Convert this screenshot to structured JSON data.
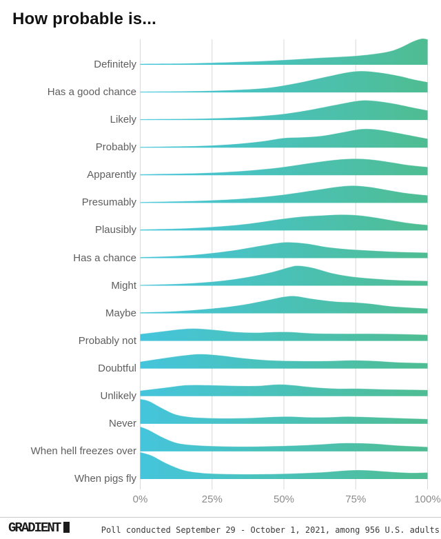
{
  "header": {
    "title": "How probable is..."
  },
  "chart_data": {
    "type": "area",
    "variant": "ridgeline",
    "title": "How probable is...",
    "xlabel": "",
    "ylabel": "",
    "x_range": [
      0,
      100
    ],
    "x_ticks": [
      "0%",
      "25%",
      "50%",
      "75%",
      "100%"
    ],
    "grid": "vertical",
    "legend": "none",
    "colors": {
      "gradient_left": "#45C5DC",
      "gradient_right": "#4FBD92",
      "gridline": "#d8d8d8",
      "category_label": "#5e5e5e",
      "tick_label": "#8a8a8a"
    },
    "series": [
      {
        "name": "Definitely",
        "points": [
          [
            0,
            1.5
          ],
          [
            15,
            2
          ],
          [
            25,
            3
          ],
          [
            40,
            5
          ],
          [
            50,
            7
          ],
          [
            62,
            10
          ],
          [
            75,
            13
          ],
          [
            85,
            18
          ],
          [
            90,
            24
          ],
          [
            95,
            34
          ],
          [
            98,
            38
          ],
          [
            100,
            37
          ]
        ]
      },
      {
        "name": "Has a good chance",
        "points": [
          [
            0,
            1.2
          ],
          [
            20,
            2
          ],
          [
            35,
            4
          ],
          [
            45,
            7
          ],
          [
            55,
            14
          ],
          [
            65,
            23
          ],
          [
            72,
            29
          ],
          [
            77,
            31
          ],
          [
            83,
            29
          ],
          [
            90,
            24
          ],
          [
            95,
            19
          ],
          [
            100,
            15
          ]
        ]
      },
      {
        "name": "Likely",
        "points": [
          [
            0,
            1.2
          ],
          [
            20,
            2
          ],
          [
            35,
            4
          ],
          [
            48,
            8
          ],
          [
            58,
            14
          ],
          [
            68,
            22
          ],
          [
            76,
            28
          ],
          [
            81,
            28
          ],
          [
            88,
            24
          ],
          [
            95,
            18
          ],
          [
            100,
            14
          ]
        ]
      },
      {
        "name": "Probably",
        "points": [
          [
            0,
            1.2
          ],
          [
            20,
            2.5
          ],
          [
            32,
            5
          ],
          [
            42,
            9
          ],
          [
            50,
            14
          ],
          [
            56,
            15
          ],
          [
            63,
            17
          ],
          [
            70,
            22
          ],
          [
            77,
            27
          ],
          [
            83,
            26
          ],
          [
            90,
            21
          ],
          [
            95,
            17
          ],
          [
            100,
            13
          ]
        ]
      },
      {
        "name": "Apparently",
        "points": [
          [
            0,
            1.5
          ],
          [
            20,
            3
          ],
          [
            35,
            6
          ],
          [
            48,
            11
          ],
          [
            58,
            17
          ],
          [
            67,
            22
          ],
          [
            74,
            24
          ],
          [
            80,
            23
          ],
          [
            87,
            19
          ],
          [
            93,
            15
          ],
          [
            100,
            12
          ]
        ]
      },
      {
        "name": "Presumably",
        "points": [
          [
            0,
            1.2
          ],
          [
            20,
            3
          ],
          [
            35,
            6
          ],
          [
            48,
            11
          ],
          [
            60,
            18
          ],
          [
            68,
            23
          ],
          [
            74,
            25
          ],
          [
            80,
            23
          ],
          [
            87,
            18
          ],
          [
            93,
            14
          ],
          [
            100,
            11
          ]
        ]
      },
      {
        "name": "Plausibly",
        "points": [
          [
            0,
            1.5
          ],
          [
            15,
            3
          ],
          [
            28,
            6
          ],
          [
            38,
            10
          ],
          [
            48,
            16
          ],
          [
            56,
            20
          ],
          [
            64,
            22
          ],
          [
            70,
            23
          ],
          [
            76,
            22
          ],
          [
            83,
            18
          ],
          [
            90,
            13
          ],
          [
            95,
            10
          ],
          [
            100,
            8
          ]
        ]
      },
      {
        "name": "Has a chance",
        "points": [
          [
            0,
            1.5
          ],
          [
            12,
            3
          ],
          [
            22,
            6
          ],
          [
            32,
            11
          ],
          [
            42,
            18
          ],
          [
            48,
            22
          ],
          [
            52,
            23
          ],
          [
            58,
            21
          ],
          [
            65,
            16
          ],
          [
            72,
            13
          ],
          [
            80,
            11
          ],
          [
            90,
            9
          ],
          [
            100,
            8
          ]
        ]
      },
      {
        "name": "Might",
        "points": [
          [
            0,
            1.2
          ],
          [
            15,
            3
          ],
          [
            28,
            7
          ],
          [
            38,
            13
          ],
          [
            46,
            20
          ],
          [
            52,
            27
          ],
          [
            55,
            29
          ],
          [
            60,
            26
          ],
          [
            67,
            18
          ],
          [
            74,
            13
          ],
          [
            82,
            10
          ],
          [
            90,
            8
          ],
          [
            100,
            7
          ]
        ]
      },
      {
        "name": "Maybe",
        "points": [
          [
            0,
            1.5
          ],
          [
            12,
            3
          ],
          [
            25,
            7
          ],
          [
            35,
            12
          ],
          [
            44,
            19
          ],
          [
            50,
            24
          ],
          [
            54,
            25
          ],
          [
            60,
            21
          ],
          [
            68,
            17
          ],
          [
            74,
            16
          ],
          [
            80,
            14
          ],
          [
            88,
            10
          ],
          [
            100,
            7
          ]
        ]
      },
      {
        "name": "Probably not",
        "points": [
          [
            0,
            10
          ],
          [
            8,
            14
          ],
          [
            14,
            17
          ],
          [
            19,
            18
          ],
          [
            26,
            16
          ],
          [
            33,
            13
          ],
          [
            40,
            12
          ],
          [
            47,
            13
          ],
          [
            52,
            13
          ],
          [
            60,
            11
          ],
          [
            70,
            10.5
          ],
          [
            80,
            10.5
          ],
          [
            90,
            10
          ],
          [
            100,
            9
          ]
        ]
      },
      {
        "name": "Doubtful",
        "points": [
          [
            0,
            10
          ],
          [
            8,
            15
          ],
          [
            15,
            19
          ],
          [
            21,
            21
          ],
          [
            28,
            19
          ],
          [
            36,
            15
          ],
          [
            45,
            12
          ],
          [
            55,
            11
          ],
          [
            65,
            11
          ],
          [
            74,
            12
          ],
          [
            82,
            11
          ],
          [
            90,
            9
          ],
          [
            100,
            8
          ]
        ]
      },
      {
        "name": "Unlikely",
        "points": [
          [
            0,
            8
          ],
          [
            8,
            12
          ],
          [
            16,
            16
          ],
          [
            24,
            16
          ],
          [
            33,
            15
          ],
          [
            41,
            15
          ],
          [
            48,
            17
          ],
          [
            53,
            16
          ],
          [
            60,
            13
          ],
          [
            68,
            11
          ],
          [
            76,
            11
          ],
          [
            84,
            10
          ],
          [
            92,
            9.5
          ],
          [
            100,
            9
          ]
        ]
      },
      {
        "name": "Never",
        "points": [
          [
            0,
            36
          ],
          [
            3,
            33
          ],
          [
            7,
            24
          ],
          [
            12,
            14
          ],
          [
            17,
            10
          ],
          [
            23,
            8.5
          ],
          [
            30,
            8
          ],
          [
            38,
            8.5
          ],
          [
            46,
            10
          ],
          [
            52,
            10.5
          ],
          [
            58,
            9.5
          ],
          [
            65,
            9.5
          ],
          [
            72,
            10.5
          ],
          [
            78,
            10
          ],
          [
            85,
            9
          ],
          [
            92,
            8
          ],
          [
            100,
            7
          ]
        ]
      },
      {
        "name": "When hell freezes over",
        "points": [
          [
            0,
            36
          ],
          [
            3,
            31
          ],
          [
            8,
            20
          ],
          [
            13,
            12
          ],
          [
            19,
            9
          ],
          [
            27,
            7.5
          ],
          [
            36,
            7
          ],
          [
            45,
            7.5
          ],
          [
            54,
            8.5
          ],
          [
            62,
            10
          ],
          [
            70,
            12
          ],
          [
            76,
            12
          ],
          [
            82,
            11
          ],
          [
            90,
            8.5
          ],
          [
            100,
            6.5
          ]
        ]
      },
      {
        "name": "When pigs fly",
        "points": [
          [
            0,
            39
          ],
          [
            4,
            34
          ],
          [
            9,
            23
          ],
          [
            15,
            13
          ],
          [
            21,
            9
          ],
          [
            28,
            7.5
          ],
          [
            38,
            7
          ],
          [
            48,
            7.5
          ],
          [
            56,
            8.5
          ],
          [
            64,
            10
          ],
          [
            70,
            12
          ],
          [
            75,
            13
          ],
          [
            80,
            12.5
          ],
          [
            87,
            10.5
          ],
          [
            94,
            9
          ],
          [
            100,
            9.5
          ]
        ]
      }
    ]
  },
  "footer": {
    "brand": "GRADIENT",
    "source_note": "Poll conducted September 29 - October 1, 2021, among 956 U.S. adults"
  }
}
